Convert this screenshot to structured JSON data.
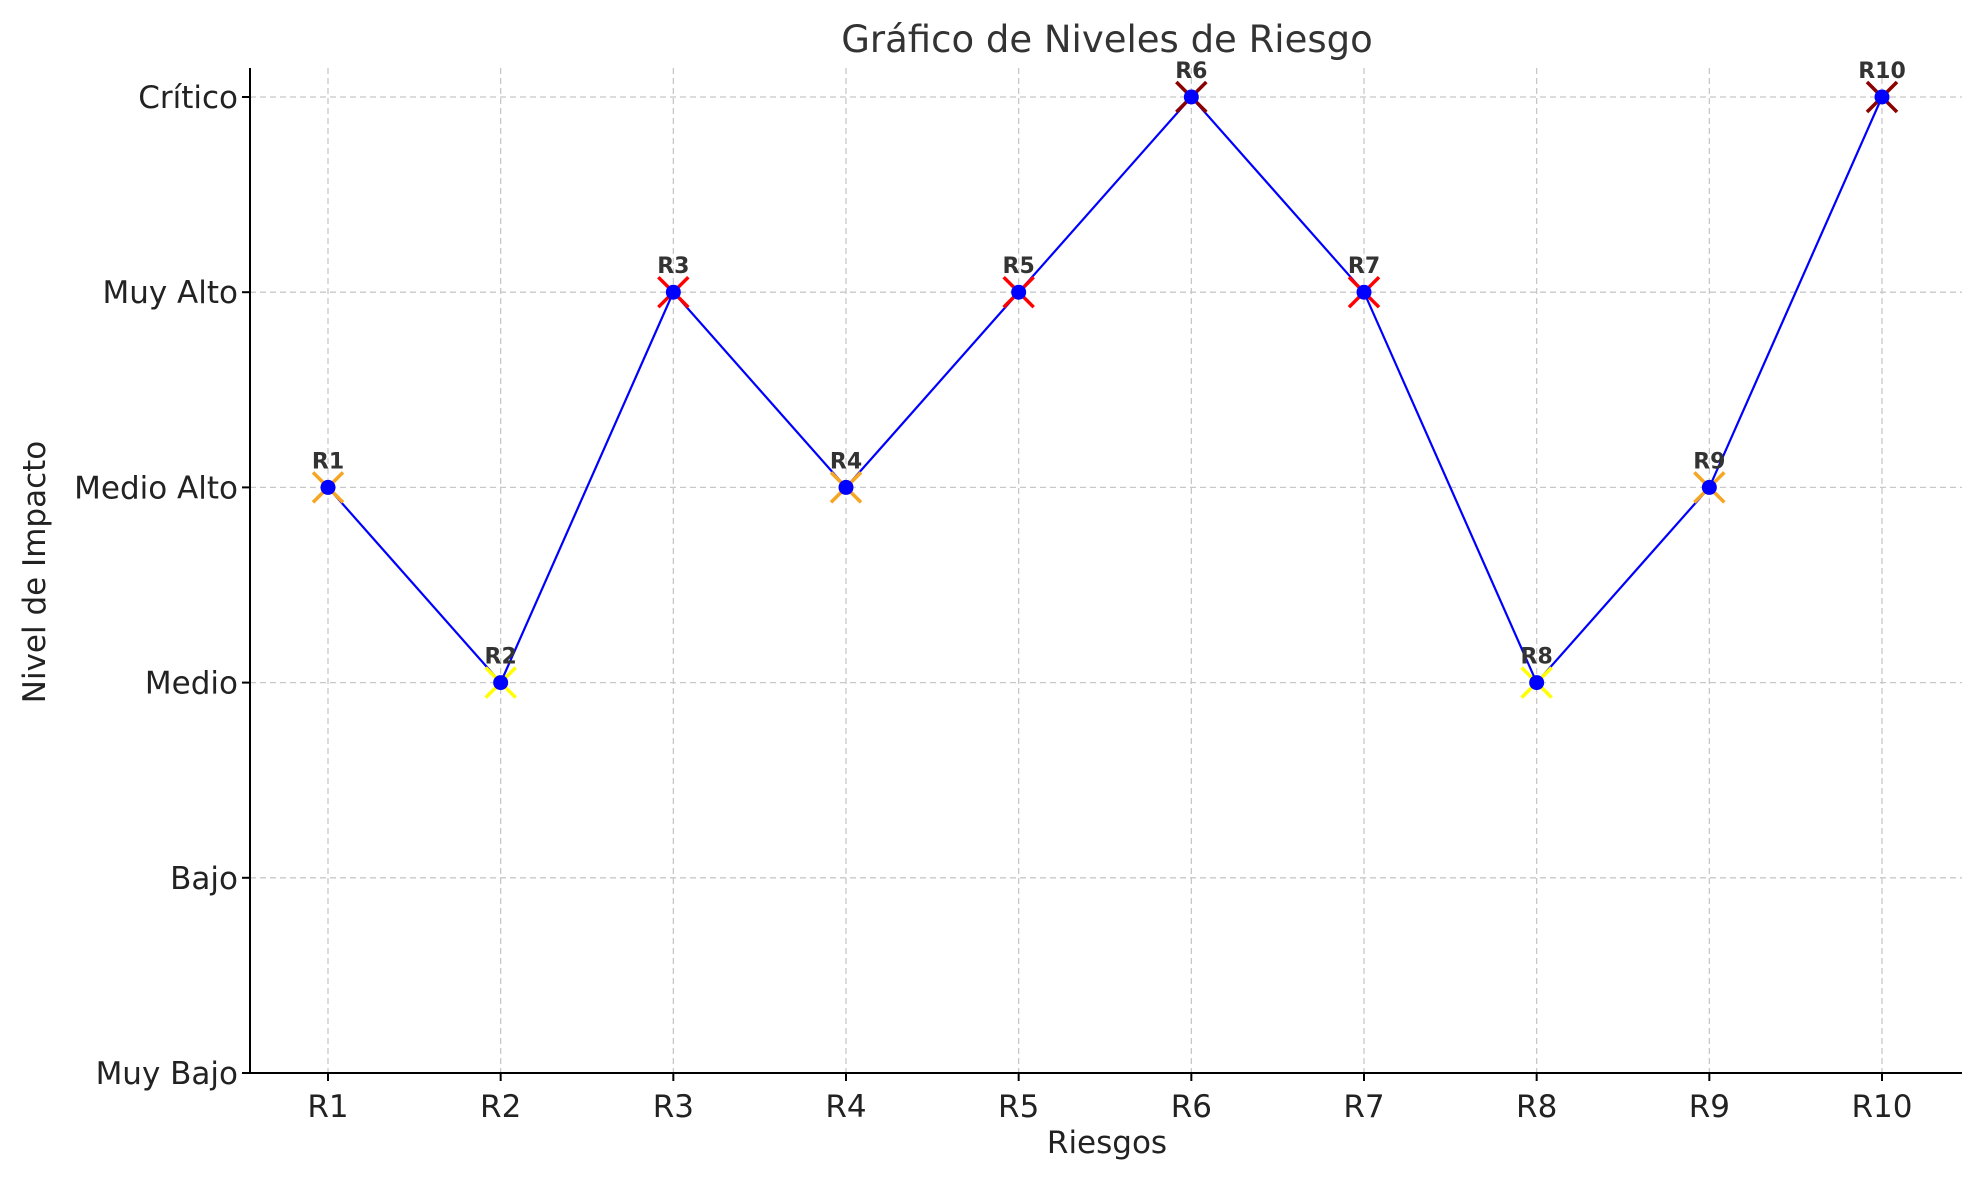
{
  "chart_data": {
    "type": "line",
    "title": "Gráfico de Niveles de Riesgo",
    "xlabel": "Riesgos",
    "ylabel": "Nivel de Impacto",
    "categories": [
      "R1",
      "R2",
      "R3",
      "R4",
      "R5",
      "R6",
      "R7",
      "R8",
      "R9",
      "R10"
    ],
    "y_levels": [
      "Muy Bajo",
      "Bajo",
      "Medio",
      "Medio Alto",
      "Muy Alto",
      "Crítico"
    ],
    "values": [
      3,
      2,
      4,
      3,
      4,
      5,
      4,
      2,
      3,
      5
    ],
    "point_labels": [
      "R1",
      "R2",
      "R3",
      "R4",
      "R5",
      "R6",
      "R7",
      "R8",
      "R9",
      "R10"
    ],
    "ylim": [
      0,
      5
    ],
    "grid": true,
    "line_color": "#0000ff",
    "marker_color": "#0000ff",
    "level_marker_colors": {
      "Medio": "#ffff00",
      "Medio Alto": "#f5a623",
      "Muy Alto": "#ff0000",
      "Crítico": "#8b0000"
    }
  }
}
